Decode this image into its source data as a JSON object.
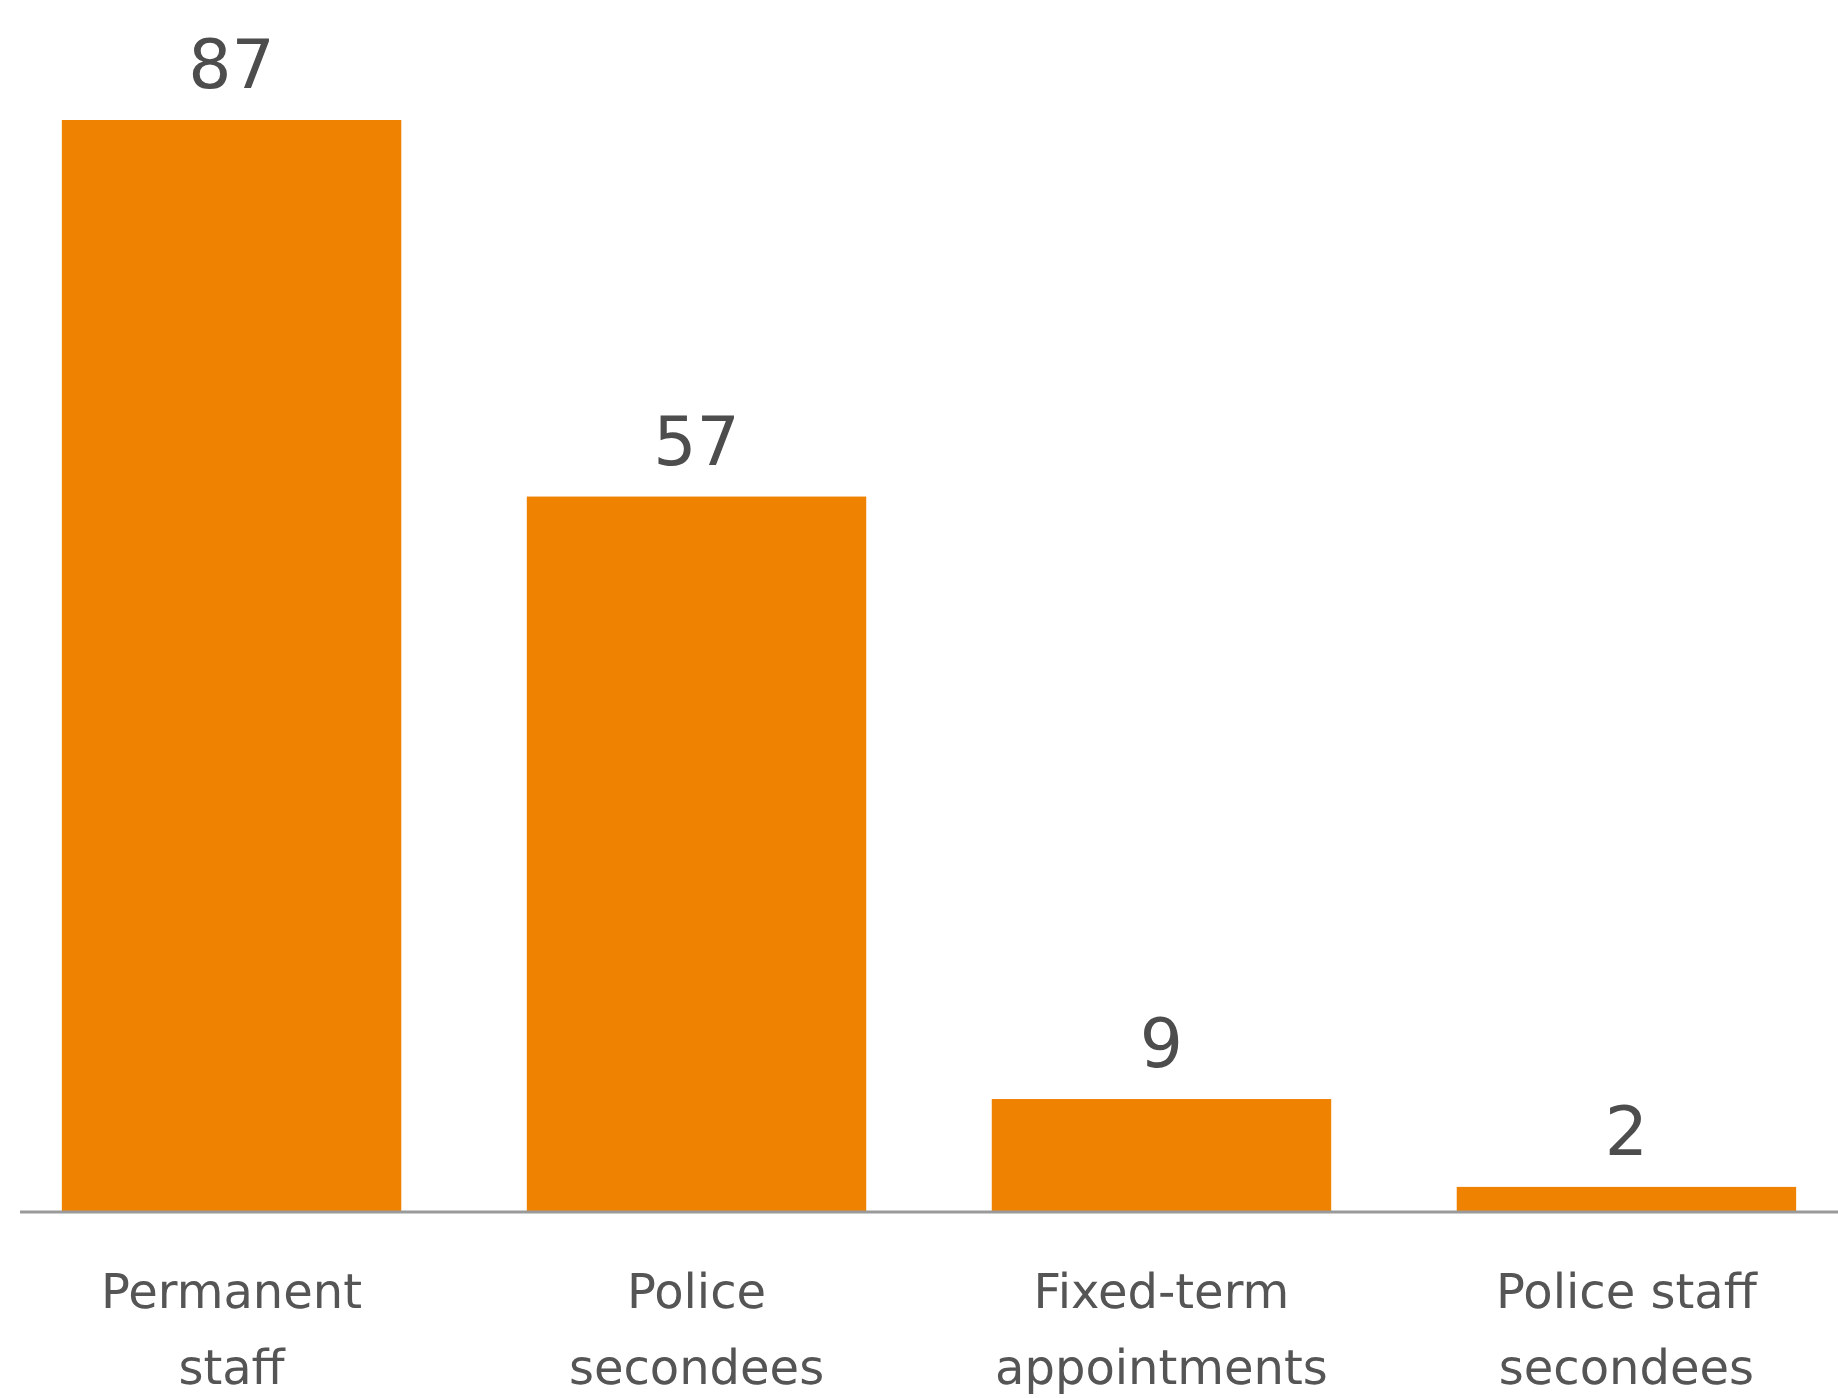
{
  "chart_data": {
    "type": "bar",
    "categories": [
      "Permanent staff",
      "Police secondees",
      "Fixed-term appointments",
      "Police staff secondees"
    ],
    "values": [
      87,
      57,
      9,
      2
    ],
    "color": "#ef8200",
    "data_labels": true
  }
}
